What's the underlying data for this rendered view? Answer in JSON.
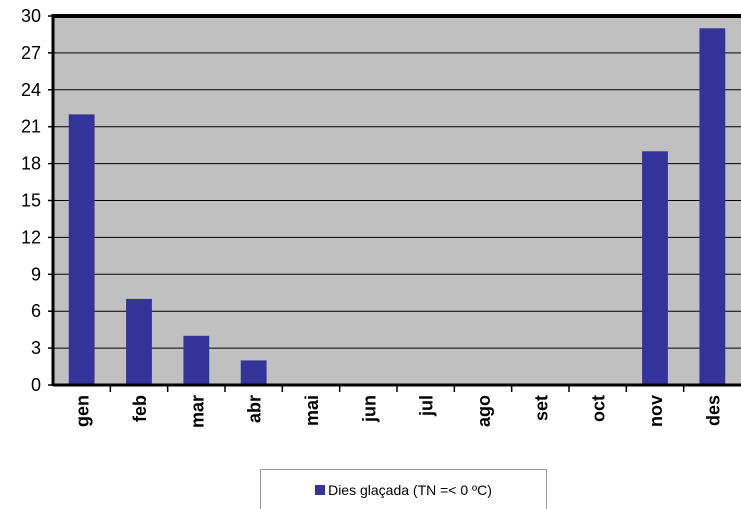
{
  "chart_data": {
    "type": "bar",
    "categories": [
      "gen",
      "feb",
      "mar",
      "abr",
      "mai",
      "jun",
      "jul",
      "ago",
      "set",
      "oct",
      "nov",
      "des"
    ],
    "series": [
      {
        "name": "Dies glaçada (TN =< 0 ºC)",
        "values": [
          22,
          7,
          4,
          2,
          0,
          0,
          0,
          0,
          0,
          0,
          19,
          29
        ],
        "color": "#333399"
      }
    ],
    "yticks": [
      "0",
      "3",
      "6",
      "9",
      "12",
      "15",
      "18",
      "21",
      "24",
      "27",
      "30"
    ],
    "ylim": [
      0,
      30
    ],
    "grid": true,
    "plot_background": "#c0c0c0",
    "legend_position": "bottom"
  }
}
